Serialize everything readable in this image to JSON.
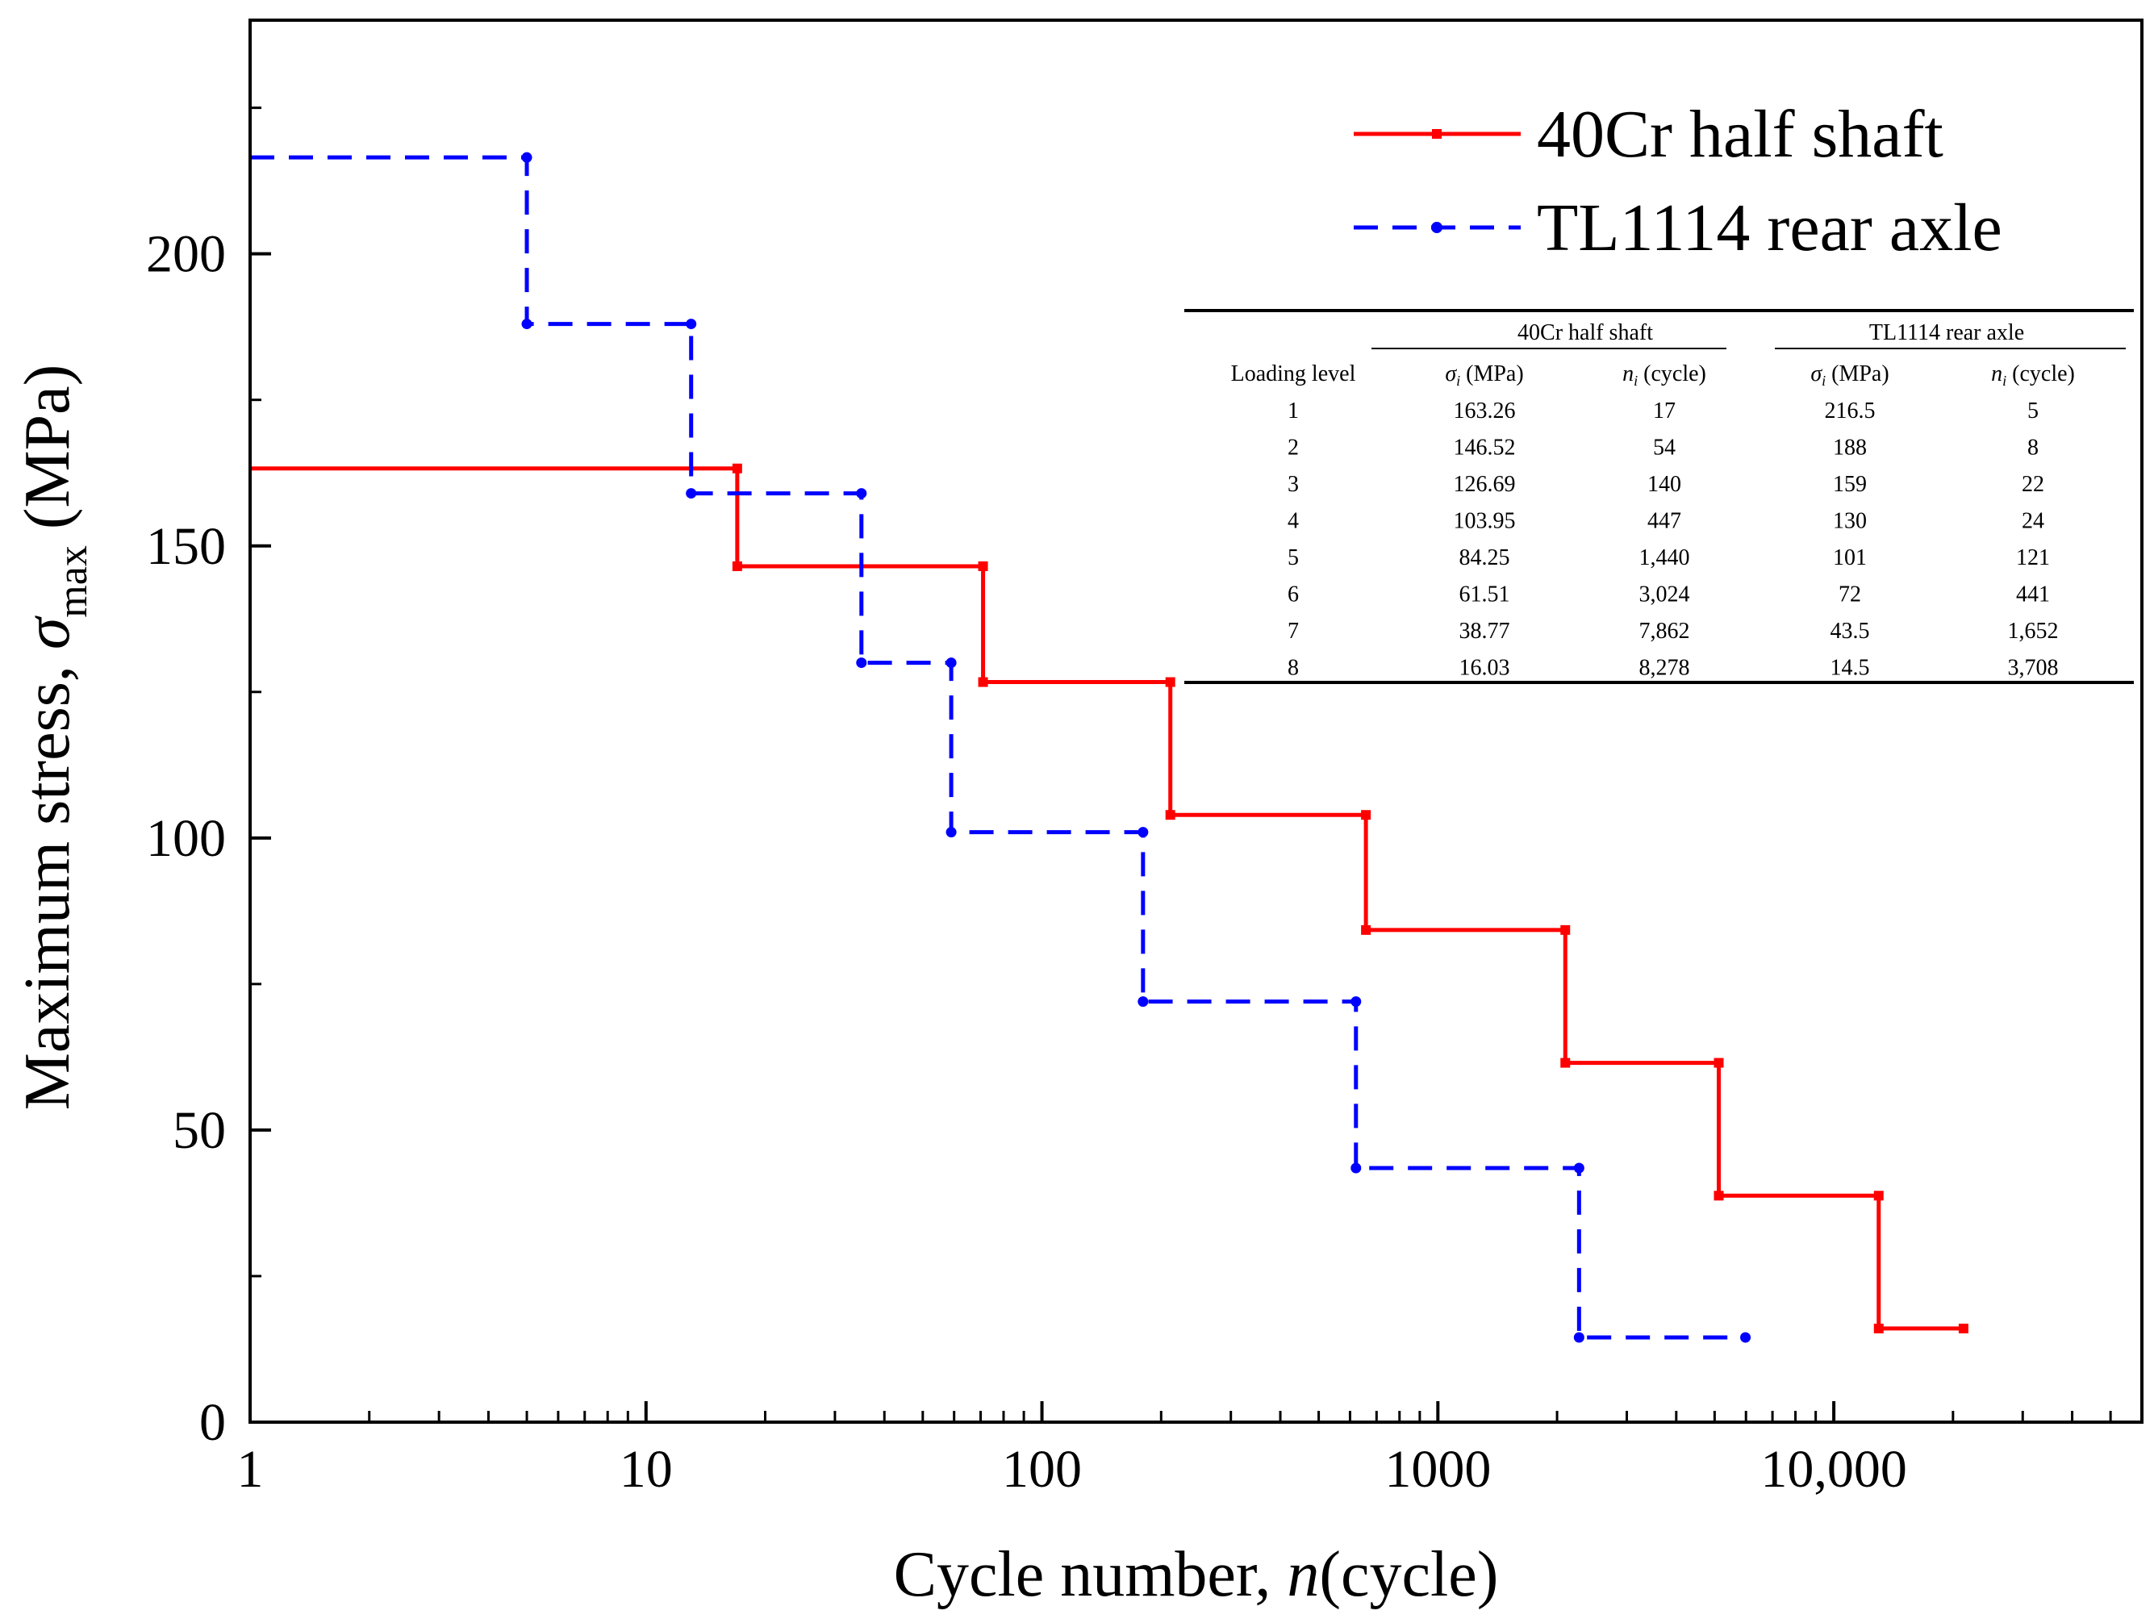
{
  "chart_data": {
    "type": "line",
    "step": true,
    "title": "",
    "xlabel": {
      "prefix": "Cycle number, ",
      "var": "n",
      "suffix": "(cycle)"
    },
    "ylabel": {
      "prefix": "Maximum stress, ",
      "var": "σ",
      "sub": "max",
      "suffix": " (MPa)"
    },
    "xscale": "log",
    "xlim": [
      1,
      60000
    ],
    "ylim": [
      0,
      240
    ],
    "x_ticks": [
      {
        "value": 1,
        "label": "1"
      },
      {
        "value": 10,
        "label": "10"
      },
      {
        "value": 100,
        "label": "100"
      },
      {
        "value": 1000,
        "label": "1000"
      },
      {
        "value": 10000,
        "label": "10,000"
      }
    ],
    "y_ticks": [
      {
        "value": 0,
        "label": "0"
      },
      {
        "value": 50,
        "label": "50"
      },
      {
        "value": 100,
        "label": "100"
      },
      {
        "value": 150,
        "label": "150"
      },
      {
        "value": 200,
        "label": "200"
      }
    ],
    "legend_position": "top-right",
    "series": [
      {
        "name": "40Cr half shaft",
        "color": "#ff0000",
        "dash": "solid",
        "levels": [
          163.26,
          146.52,
          126.69,
          103.95,
          84.25,
          61.51,
          38.77,
          16.03
        ],
        "breaks": [
          17,
          71,
          211,
          658,
          2098,
          5122,
          12984,
          21262
        ]
      },
      {
        "name": "TL1114 rear axle",
        "color": "#0000ff",
        "dash": "dashed",
        "levels": [
          216.5,
          188,
          159,
          130,
          101,
          72,
          43.5,
          14.5
        ],
        "breaks": [
          5,
          13,
          35,
          59,
          180,
          621,
          2273,
          5981
        ]
      }
    ],
    "inset_table": {
      "group_headers": [
        "40Cr half shaft",
        "TL1114 rear axle"
      ],
      "col_headers": [
        {
          "text": "Loading level"
        },
        {
          "var": "σ",
          "sub": "i",
          "rest": " (MPa)"
        },
        {
          "var": "n",
          "sub": "i",
          "rest": " (cycle)"
        },
        {
          "var": "σ",
          "sub": "i",
          "rest": " (MPa)"
        },
        {
          "var": "n",
          "sub": "i",
          "rest": " (cycle)"
        }
      ],
      "rows": [
        [
          "1",
          "163.26",
          "17",
          "216.5",
          "5"
        ],
        [
          "2",
          "146.52",
          "54",
          "188",
          "8"
        ],
        [
          "3",
          "126.69",
          "140",
          "159",
          "22"
        ],
        [
          "4",
          "103.95",
          "447",
          "130",
          "24"
        ],
        [
          "5",
          "84.25",
          "1,440",
          "101",
          "121"
        ],
        [
          "6",
          "61.51",
          "3,024",
          "72",
          "441"
        ],
        [
          "7",
          "38.77",
          "7,862",
          "43.5",
          "1,652"
        ],
        [
          "8",
          "16.03",
          "8,278",
          "14.5",
          "3,708"
        ]
      ]
    }
  }
}
